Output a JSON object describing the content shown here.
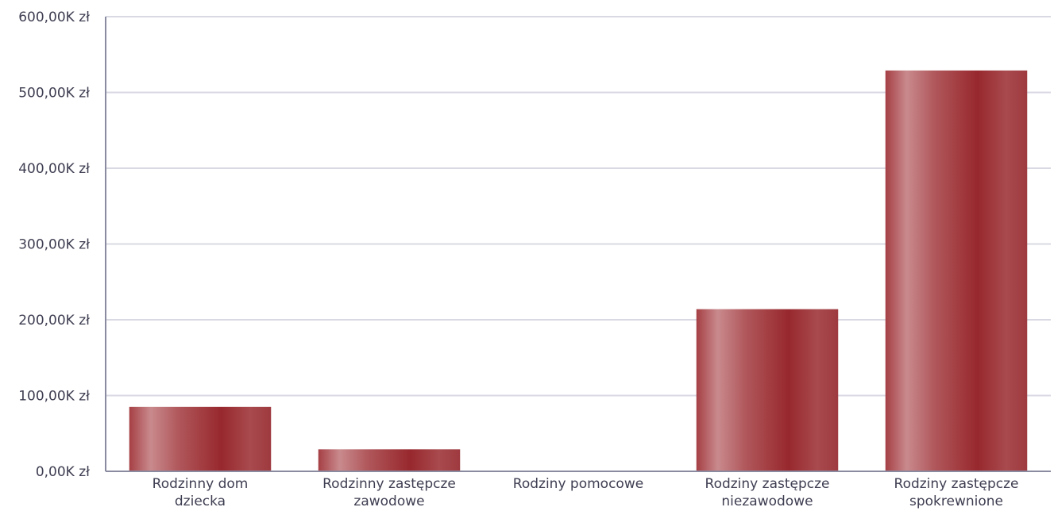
{
  "chart_data": {
    "type": "bar",
    "categories": [
      [
        "Rodzinny dom",
        "dziecka"
      ],
      [
        "Rodzinny zastępcze",
        "zawodowe"
      ],
      [
        "Rodziny pomocowe"
      ],
      [
        "Rodziny zastępcze",
        "niezawodowe"
      ],
      [
        "Rodziny zastępcze",
        "spokrewnione"
      ]
    ],
    "values": [
      85000,
      29000,
      0,
      214000,
      529000
    ],
    "ylim": [
      0,
      600000
    ],
    "yticks": [
      0,
      100000,
      200000,
      300000,
      400000,
      500000,
      600000
    ],
    "ytick_labels": [
      "0,00K zł",
      "100,00K zł",
      "200,00K zł",
      "300,00K zł",
      "400,00K zł",
      "500,00K zł",
      "600,00K zł"
    ],
    "grid": true,
    "bar_color": "#9e2f34",
    "title": "",
    "xlabel": "",
    "ylabel": ""
  }
}
